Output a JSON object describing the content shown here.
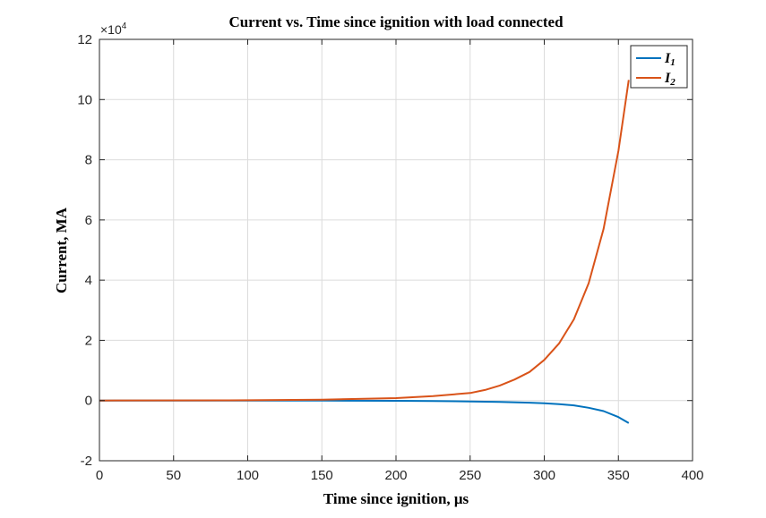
{
  "chart_data": {
    "type": "line",
    "title": "Current vs. Time since ignition with load connected",
    "xlabel": "Time since ignition, μs",
    "ylabel": "Current, MA",
    "xlim": [
      0,
      400
    ],
    "ylim": [
      -2,
      12
    ],
    "xticks": [
      0,
      50,
      100,
      150,
      200,
      250,
      300,
      350,
      400
    ],
    "yticks": [
      -2,
      0,
      2,
      4,
      6,
      8,
      10,
      12
    ],
    "y_exponent": {
      "base": "×10",
      "power": "4"
    },
    "grid": true,
    "legend_position": "top-right",
    "series": [
      {
        "name": "I",
        "subscript": "1",
        "color": "#0072BD",
        "x": [
          0,
          100,
          150,
          200,
          225,
          250,
          270,
          290,
          300,
          310,
          320,
          330,
          340,
          350,
          357
        ],
        "values": [
          0,
          0,
          -0.002,
          -0.008,
          -0.015,
          -0.028,
          -0.045,
          -0.07,
          -0.09,
          -0.12,
          -0.16,
          -0.24,
          -0.35,
          -0.55,
          -0.75
        ]
      },
      {
        "name": "I",
        "subscript": "2",
        "color": "#D95319",
        "x": [
          0,
          100,
          150,
          200,
          225,
          250,
          260,
          270,
          280,
          290,
          300,
          310,
          320,
          330,
          340,
          350,
          357
        ],
        "values": [
          0,
          0.01,
          0.03,
          0.08,
          0.15,
          0.25,
          0.35,
          0.5,
          0.7,
          0.95,
          1.35,
          1.9,
          2.7,
          3.9,
          5.7,
          8.3,
          10.65
        ]
      }
    ]
  }
}
